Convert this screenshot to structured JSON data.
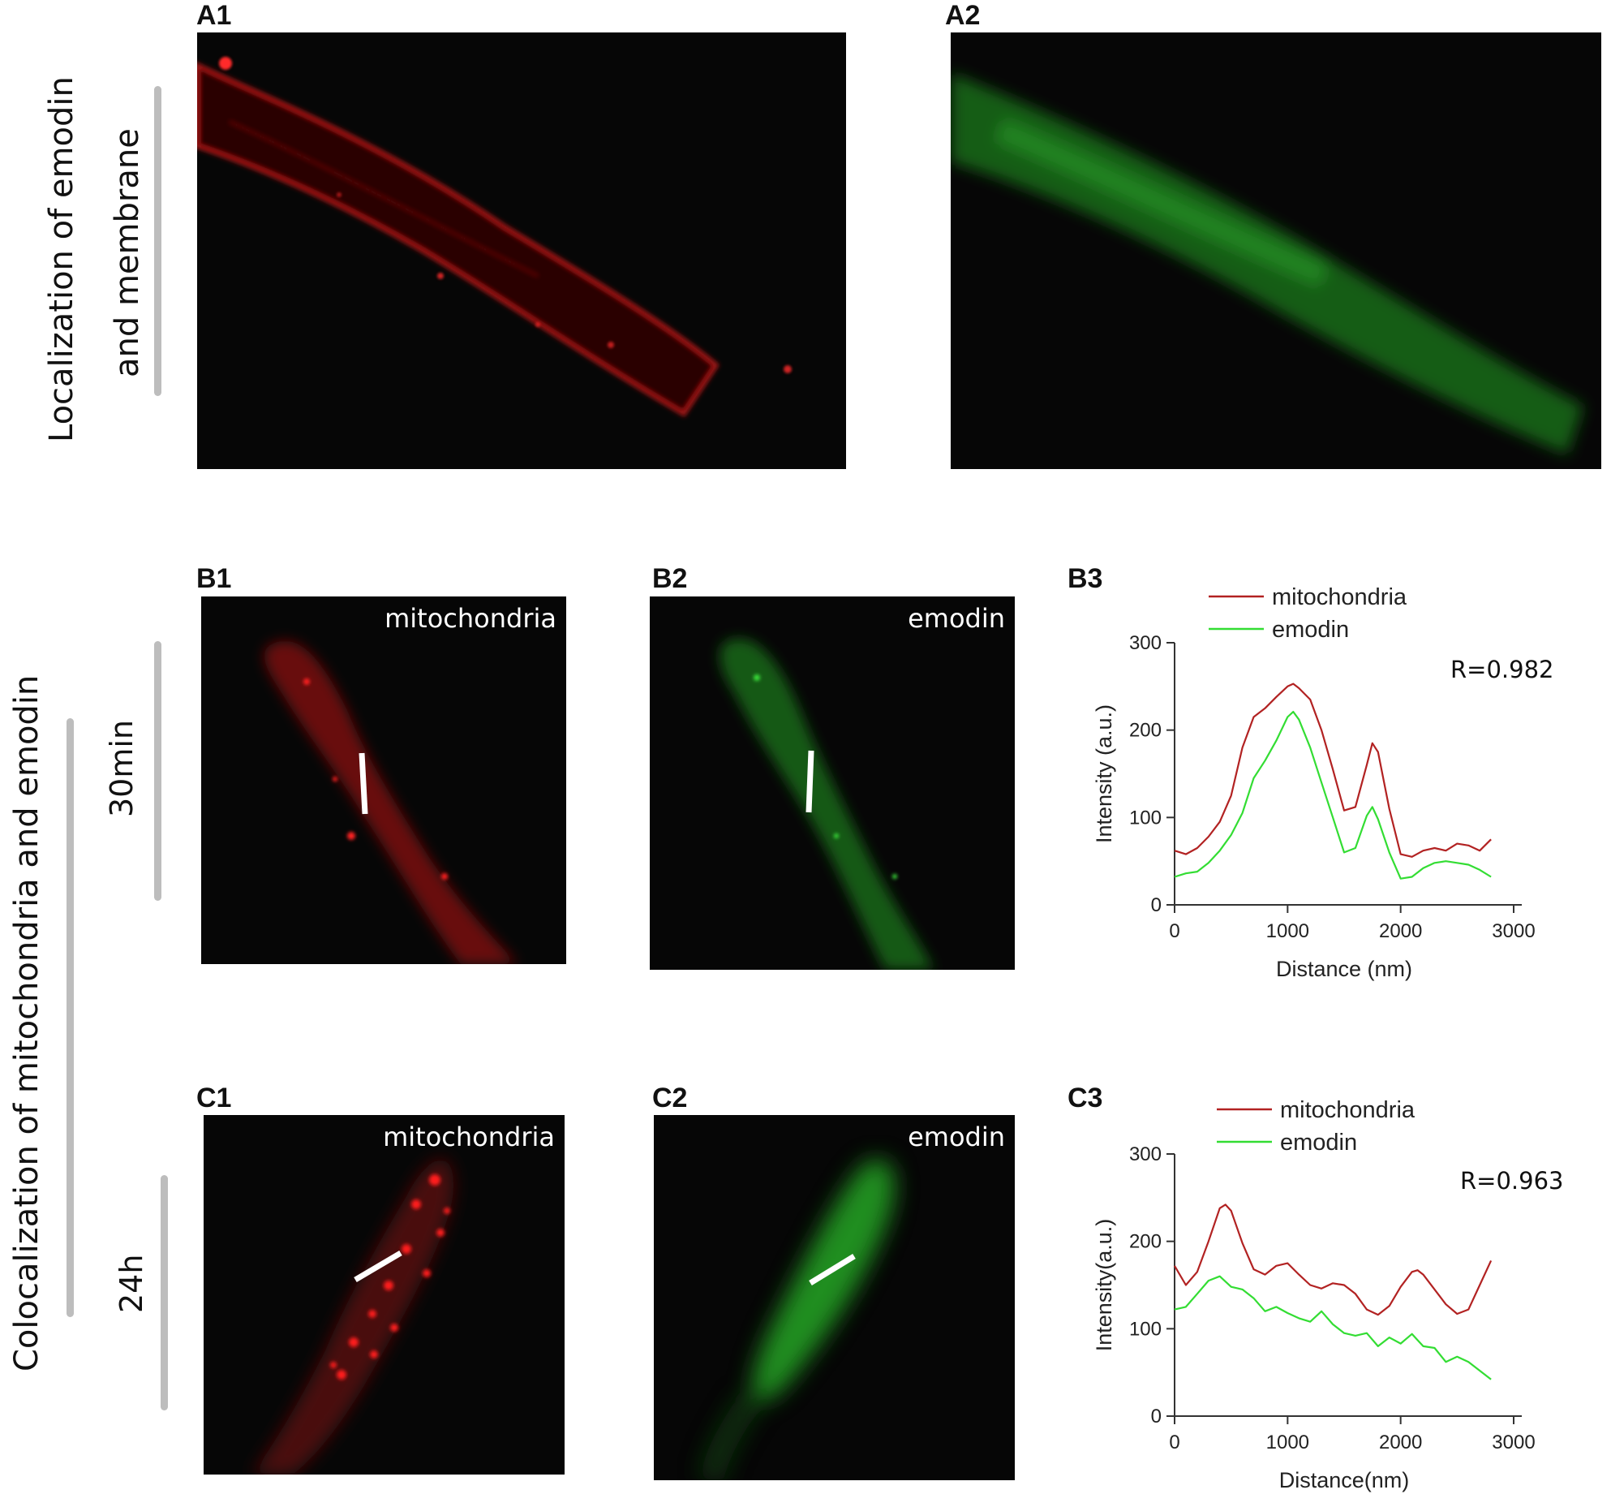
{
  "side_labels": {
    "top_line1": "Localization of emodin",
    "top_line2": "and membrane",
    "bottom": "Colocalization of mitochondria and emodin",
    "row_b": "30min",
    "row_c": "24h"
  },
  "panels": {
    "A1": "A1",
    "A2": "A2",
    "B1": "B1",
    "B2": "B2",
    "B3": "B3",
    "C1": "C1",
    "C2": "C2",
    "C3": "C3"
  },
  "image_labels": {
    "B1": "mitochondria",
    "B2": "emodin",
    "C1": "mitochondria",
    "C2": "emodin"
  },
  "colors": {
    "mitochondria": "#b22222",
    "emodin": "#33dd33",
    "red_channel": "#e0191b",
    "green_channel": "#2fc02f"
  },
  "chart_data": [
    {
      "type": "line",
      "panel": "B3",
      "xlabel": "Distance (nm)",
      "ylabel": "Intensity (a.u.)",
      "xlim": [
        0,
        3000
      ],
      "ylim": [
        0,
        300
      ],
      "xticks": [
        "0",
        "1000",
        "2000",
        "3000"
      ],
      "yticks": [
        "0",
        "100",
        "200",
        "300"
      ],
      "annotation": "R=0.982",
      "legend": [
        "mitochondria",
        "emodin"
      ],
      "legend_position": "top-left",
      "series": [
        {
          "name": "mitochondria",
          "x": [
            0,
            100,
            200,
            300,
            400,
            500,
            600,
            700,
            800,
            900,
            1000,
            1050,
            1100,
            1200,
            1300,
            1400,
            1500,
            1600,
            1700,
            1750,
            1800,
            1900,
            2000,
            2100,
            2200,
            2300,
            2400,
            2500,
            2600,
            2700,
            2800
          ],
          "y": [
            62,
            58,
            65,
            78,
            95,
            125,
            180,
            215,
            225,
            238,
            250,
            253,
            248,
            235,
            200,
            155,
            108,
            112,
            160,
            185,
            175,
            110,
            58,
            55,
            62,
            65,
            62,
            70,
            68,
            62,
            75
          ]
        },
        {
          "name": "emodin",
          "x": [
            0,
            100,
            200,
            300,
            400,
            500,
            600,
            700,
            800,
            900,
            1000,
            1050,
            1100,
            1200,
            1300,
            1400,
            1500,
            1600,
            1700,
            1750,
            1800,
            1900,
            2000,
            2100,
            2200,
            2300,
            2400,
            2500,
            2600,
            2700,
            2800
          ],
          "y": [
            32,
            36,
            38,
            48,
            62,
            80,
            105,
            145,
            165,
            188,
            215,
            221,
            212,
            180,
            140,
            100,
            60,
            65,
            102,
            112,
            98,
            60,
            30,
            32,
            42,
            48,
            50,
            48,
            46,
            40,
            32
          ]
        }
      ]
    },
    {
      "type": "line",
      "panel": "C3",
      "xlabel": "Distance(nm)",
      "ylabel": "Intensity(a.u.)",
      "xlim": [
        0,
        3000
      ],
      "ylim": [
        0,
        300
      ],
      "xticks": [
        "0",
        "1000",
        "2000",
        "3000"
      ],
      "yticks": [
        "0",
        "100",
        "200",
        "300"
      ],
      "annotation": "R=0.963",
      "legend": [
        "mitochondria",
        "emodin"
      ],
      "legend_position": "top-left",
      "series": [
        {
          "name": "mitochondria",
          "x": [
            0,
            100,
            200,
            300,
            400,
            450,
            500,
            600,
            700,
            800,
            900,
            1000,
            1100,
            1200,
            1300,
            1400,
            1500,
            1600,
            1700,
            1800,
            1900,
            2000,
            2100,
            2150,
            2200,
            2300,
            2400,
            2500,
            2600,
            2700,
            2800
          ],
          "y": [
            172,
            150,
            165,
            200,
            238,
            242,
            235,
            198,
            168,
            162,
            172,
            175,
            162,
            150,
            146,
            152,
            150,
            140,
            122,
            116,
            126,
            148,
            165,
            167,
            162,
            145,
            128,
            117,
            122,
            150,
            178
          ]
        },
        {
          "name": "emodin",
          "x": [
            0,
            100,
            200,
            300,
            400,
            500,
            600,
            700,
            800,
            900,
            1000,
            1100,
            1200,
            1300,
            1400,
            1500,
            1600,
            1700,
            1800,
            1900,
            2000,
            2100,
            2200,
            2300,
            2400,
            2500,
            2600,
            2700,
            2800
          ],
          "y": [
            122,
            125,
            140,
            155,
            160,
            148,
            145,
            135,
            120,
            125,
            118,
            112,
            108,
            120,
            105,
            95,
            92,
            95,
            80,
            90,
            83,
            94,
            80,
            78,
            62,
            68,
            62,
            52,
            42
          ]
        }
      ]
    }
  ]
}
